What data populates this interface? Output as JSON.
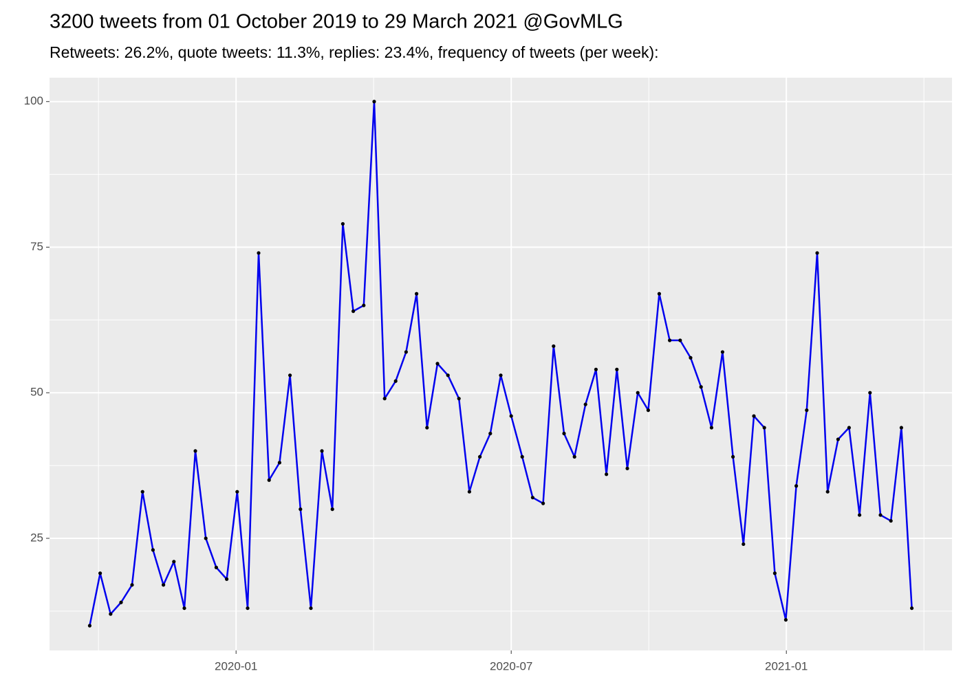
{
  "chart_data": {
    "type": "line",
    "title": "3200 tweets from 01 October 2019 to 29 March 2021 @GovMLG",
    "subtitle": "Retweets: 26.2%, quote tweets: 11.3%, replies: 23.4%, frequency of tweets (per week):",
    "x": [
      2019.734,
      2019.753,
      2019.772,
      2019.791,
      2019.811,
      2019.83,
      2019.849,
      2019.868,
      2019.887,
      2019.906,
      2019.926,
      2019.945,
      2019.964,
      2019.983,
      2020.002,
      2020.021,
      2020.041,
      2020.06,
      2020.079,
      2020.098,
      2020.117,
      2020.136,
      2020.156,
      2020.175,
      2020.194,
      2020.213,
      2020.232,
      2020.251,
      2020.27,
      2020.29,
      2020.309,
      2020.328,
      2020.347,
      2020.366,
      2020.385,
      2020.405,
      2020.424,
      2020.443,
      2020.462,
      2020.481,
      2020.5,
      2020.52,
      2020.539,
      2020.558,
      2020.577,
      2020.596,
      2020.615,
      2020.635,
      2020.654,
      2020.673,
      2020.692,
      2020.711,
      2020.73,
      2020.749,
      2020.769,
      2020.788,
      2020.807,
      2020.826,
      2020.845,
      2020.864,
      2020.884,
      2020.903,
      2020.922,
      2020.941,
      2020.96,
      2020.979,
      2020.999,
      2021.018,
      2021.037,
      2021.056,
      2021.075,
      2021.094,
      2021.114,
      2021.133,
      2021.152,
      2021.171,
      2021.19,
      2021.209,
      2021.228
    ],
    "series": [
      {
        "color": "#0000ee",
        "point_color": "#000000",
        "values": [
          10,
          19,
          12,
          14,
          17,
          33,
          23,
          17,
          21,
          13,
          40,
          25,
          20,
          18,
          33,
          13,
          74,
          35,
          38,
          53,
          30,
          13,
          40,
          30,
          79,
          64,
          65,
          100,
          49,
          52,
          57,
          67,
          44,
          55,
          53,
          49,
          33,
          39,
          43,
          53,
          46,
          39,
          32,
          31,
          58,
          43,
          39,
          48,
          54,
          36,
          54,
          37,
          50,
          47,
          67,
          59,
          59,
          56,
          51,
          44,
          57,
          39,
          24,
          46,
          44,
          19,
          11,
          34,
          47,
          74,
          33,
          42,
          44,
          29,
          50,
          29,
          28,
          44,
          13
        ]
      }
    ],
    "xlim": [
      2019.661,
      2021.301
    ],
    "xticks": [
      {
        "value": 2020.0,
        "label": "2020-01"
      },
      {
        "value": 2020.5,
        "label": "2020-07"
      },
      {
        "value": 2021.0,
        "label": "2021-01"
      }
    ],
    "xminor": [
      2019.75,
      2020.25,
      2020.75,
      2021.25
    ],
    "ylim": [
      5.75,
      104.1
    ],
    "yticks": [
      25,
      50,
      75,
      100
    ],
    "yminor": [
      12.5,
      37.5,
      62.5,
      87.5
    ],
    "grid": true
  }
}
